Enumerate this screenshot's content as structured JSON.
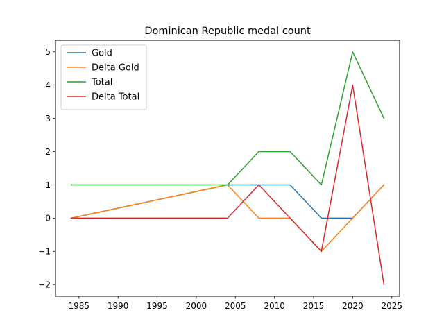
{
  "chart_data": {
    "type": "line",
    "title": "Dominican Republic medal count",
    "xlabel": "",
    "ylabel": "",
    "x": [
      1984,
      2004,
      2008,
      2012,
      2016,
      2020,
      2024
    ],
    "xlim": [
      1982.0,
      2026.0
    ],
    "ylim": [
      -2.35,
      5.35
    ],
    "xticks": [
      1985,
      1990,
      1995,
      2000,
      2005,
      2010,
      2015,
      2020,
      2025
    ],
    "yticks": [
      -2,
      -1,
      0,
      1,
      2,
      3,
      4,
      5
    ],
    "ytick_labels": [
      "−2",
      "−1",
      "0",
      "1",
      "2",
      "3",
      "4",
      "5"
    ],
    "grid": false,
    "legend_position": "top-left",
    "series": [
      {
        "name": "Gold",
        "color": "#1f77b4",
        "values": [
          0,
          1,
          1,
          1,
          0,
          0,
          1
        ]
      },
      {
        "name": "Delta Gold",
        "color": "#ff7f0e",
        "values": [
          0,
          1,
          0,
          0,
          -1,
          0,
          1
        ]
      },
      {
        "name": "Total",
        "color": "#2ca02c",
        "values": [
          1,
          1,
          2,
          2,
          1,
          5,
          3
        ]
      },
      {
        "name": "Delta Total",
        "color": "#d62728",
        "values": [
          0,
          0,
          1,
          0,
          -1,
          4,
          -2
        ]
      }
    ]
  }
}
